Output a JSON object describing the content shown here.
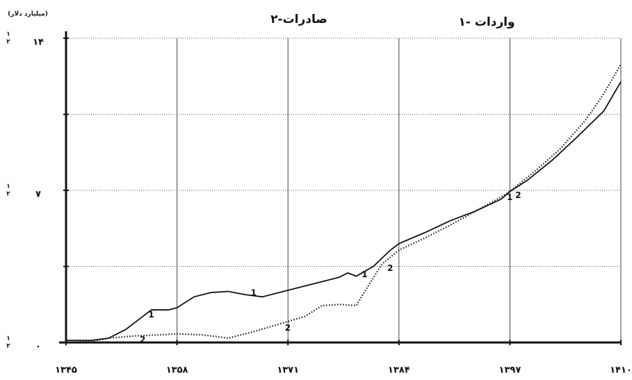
{
  "chart_data": {
    "type": "line",
    "unit_label": "(میلیارد دلار)",
    "axis_series_marks": [
      "۱",
      "۲"
    ],
    "x": [
      1345,
      1348,
      1350,
      1352,
      1354,
      1355,
      1357,
      1358,
      1360,
      1362,
      1364,
      1366,
      1368,
      1370,
      1371,
      1374,
      1377,
      1378,
      1379,
      1381,
      1383,
      1384,
      1387,
      1390,
      1393,
      1396,
      1397,
      1399,
      1402,
      1405,
      1408,
      1410
    ],
    "xlim": [
      1345,
      1410
    ],
    "xticks": [
      {
        "value": 1345,
        "label": "۱۳۴۵"
      },
      {
        "value": 1358,
        "label": "۱۳۵۸"
      },
      {
        "value": 1371,
        "label": "۱۳۷۱"
      },
      {
        "value": 1384,
        "label": "۱۳۸۴"
      },
      {
        "value": 1397,
        "label": "۱۳۹۷"
      },
      {
        "value": 1410,
        "label": "۱۴۱۰"
      }
    ],
    "ylim": [
      0,
      14
    ],
    "yticks": [
      {
        "value": 0,
        "label": "۰"
      },
      {
        "value": 3.5,
        "label": null
      },
      {
        "value": 7,
        "label": "۷"
      },
      {
        "value": 10.5,
        "label": null
      },
      {
        "value": 14,
        "label": "۱۴"
      }
    ],
    "grid": true,
    "series": [
      {
        "name": "۱- واردات",
        "marker": "1",
        "color": "#111111",
        "dash": "solid",
        "x": [
          1345,
          1348,
          1350,
          1352,
          1354,
          1355,
          1357,
          1358,
          1360,
          1362,
          1364,
          1366,
          1368,
          1370,
          1371,
          1374,
          1377,
          1378,
          1379,
          1381,
          1383,
          1384,
          1387,
          1390,
          1393,
          1396,
          1397,
          1399,
          1402,
          1405,
          1408,
          1410
        ],
        "values": [
          0.1,
          0.1,
          0.2,
          0.6,
          1.2,
          1.5,
          1.5,
          1.6,
          2.1,
          2.3,
          2.35,
          2.2,
          2.1,
          2.3,
          2.4,
          2.7,
          3.0,
          3.2,
          3.05,
          3.5,
          4.25,
          4.55,
          5.05,
          5.6,
          6.05,
          6.6,
          6.95,
          7.45,
          8.4,
          9.5,
          10.65,
          12.0
        ]
      },
      {
        "name": "۲-صادرات",
        "marker": "2",
        "color": "#111111",
        "dash": "dotted",
        "x": [
          1345,
          1348,
          1350,
          1353,
          1356,
          1358,
          1361,
          1364,
          1367,
          1370,
          1373,
          1375,
          1377,
          1379,
          1380,
          1382,
          1384,
          1387,
          1390,
          1393,
          1396,
          1397,
          1400,
          1403,
          1406,
          1408,
          1410
        ],
        "values": [
          0,
          0.05,
          0.2,
          0.3,
          0.35,
          0.4,
          0.35,
          0.2,
          0.5,
          0.85,
          1.2,
          1.7,
          1.75,
          1.7,
          2.35,
          3.6,
          4.25,
          4.8,
          5.4,
          6.05,
          6.7,
          6.95,
          7.9,
          8.95,
          10.3,
          11.45,
          12.8
        ]
      }
    ]
  }
}
